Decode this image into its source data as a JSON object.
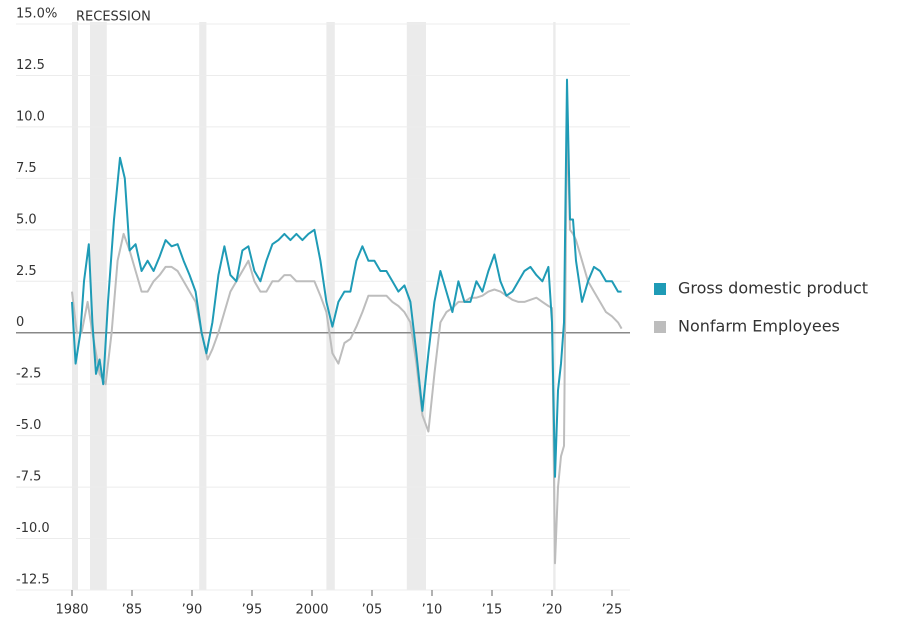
{
  "chart_data": {
    "type": "line",
    "annotation": "RECESSION",
    "recessions": [
      [
        1980.0,
        1980.5
      ],
      [
        1981.5,
        1982.9
      ],
      [
        1990.6,
        1991.2
      ],
      [
        2001.2,
        2001.9
      ],
      [
        2007.9,
        2009.5
      ],
      [
        2020.1,
        2020.3
      ]
    ],
    "recession_color": "#ebebeb",
    "xlim": [
      1980,
      2026.5
    ],
    "ylim": [
      -12.5,
      15
    ],
    "xticks": [
      1980,
      {
        "value": 1985,
        "label": "’85"
      },
      {
        "value": 1990,
        "label": "’90"
      },
      {
        "value": 1995,
        "label": "’95"
      },
      2000,
      {
        "value": 2005,
        "label": "’05"
      },
      {
        "value": 2010,
        "label": "’10"
      },
      {
        "value": 2015,
        "label": "’15"
      },
      {
        "value": 2020,
        "label": "’20"
      },
      {
        "value": 2025,
        "label": "’25"
      }
    ],
    "yticks": [
      {
        "value": 15,
        "label": "15.0%"
      },
      12.5,
      {
        "value": 10,
        "label": "10.0"
      },
      7.5,
      {
        "value": 5,
        "label": "5.0"
      },
      2.5,
      0,
      -2.5,
      {
        "value": -5,
        "label": "-5.0"
      },
      -7.5,
      {
        "value": -10,
        "label": "-10.0"
      },
      -12.5
    ],
    "grid": true,
    "legend": "right",
    "series": [
      {
        "name": "Gross domestic product",
        "color": "#1f9bb6",
        "x": [
          1980.0,
          1980.3,
          1980.7,
          1981.0,
          1981.4,
          1981.7,
          1982.0,
          1982.3,
          1982.6,
          1983.0,
          1983.5,
          1984.0,
          1984.4,
          1984.8,
          1985.3,
          1985.8,
          1986.3,
          1986.8,
          1987.3,
          1987.8,
          1988.3,
          1988.8,
          1989.3,
          1989.8,
          1990.3,
          1990.8,
          1991.2,
          1991.7,
          1992.2,
          1992.7,
          1993.2,
          1993.7,
          1994.2,
          1994.7,
          1995.2,
          1995.7,
          1996.2,
          1996.7,
          1997.2,
          1997.7,
          1998.2,
          1998.7,
          1999.2,
          1999.7,
          2000.2,
          2000.7,
          2001.2,
          2001.7,
          2002.2,
          2002.7,
          2003.2,
          2003.7,
          2004.2,
          2004.7,
          2005.2,
          2005.7,
          2006.2,
          2006.7,
          2007.2,
          2007.7,
          2008.2,
          2008.7,
          2009.2,
          2009.7,
          2010.2,
          2010.7,
          2011.2,
          2011.7,
          2012.2,
          2012.7,
          2013.2,
          2013.7,
          2014.2,
          2014.7,
          2015.2,
          2015.7,
          2016.2,
          2016.7,
          2017.2,
          2017.7,
          2018.2,
          2018.7,
          2019.2,
          2019.7,
          2020.0,
          2020.25,
          2020.5,
          2020.75,
          2021.0,
          2021.25,
          2021.5,
          2021.75,
          2022.0,
          2022.5,
          2023.0,
          2023.5,
          2024.0,
          2024.5,
          2025.0,
          2025.5,
          2025.8
        ],
        "values": [
          1.5,
          -1.5,
          0,
          2.5,
          4.3,
          0.5,
          -2.0,
          -1.3,
          -2.5,
          1.5,
          5.5,
          8.5,
          7.5,
          4.0,
          4.3,
          3.0,
          3.5,
          3.0,
          3.7,
          4.5,
          4.2,
          4.3,
          3.5,
          2.8,
          2.0,
          0,
          -1.0,
          0.5,
          2.8,
          4.2,
          2.8,
          2.5,
          4.0,
          4.2,
          3.0,
          2.5,
          3.5,
          4.3,
          4.5,
          4.8,
          4.5,
          4.8,
          4.5,
          4.8,
          5.0,
          3.5,
          1.5,
          0.3,
          1.5,
          2.0,
          2.0,
          3.5,
          4.2,
          3.5,
          3.5,
          3.0,
          3.0,
          2.5,
          2.0,
          2.3,
          1.5,
          -1.0,
          -3.8,
          -1.0,
          1.5,
          3.0,
          2.0,
          1.0,
          2.5,
          1.5,
          1.5,
          2.5,
          2.0,
          3.0,
          3.8,
          2.5,
          1.8,
          2.0,
          2.5,
          3.0,
          3.2,
          2.8,
          2.5,
          3.2,
          0.5,
          -7.0,
          -2.8,
          -1.5,
          0.5,
          12.3,
          5.5,
          5.5,
          3.5,
          1.5,
          2.5,
          3.2,
          3.0,
          2.5,
          2.5,
          2.0,
          2.0
        ]
      },
      {
        "name": "Nonfarm Employees",
        "color": "#bdbdbd",
        "x": [
          1980.0,
          1980.4,
          1980.8,
          1981.3,
          1981.7,
          1982.3,
          1982.8,
          1983.3,
          1983.8,
          1984.3,
          1984.8,
          1985.3,
          1985.8,
          1986.3,
          1986.8,
          1987.3,
          1987.8,
          1988.3,
          1988.8,
          1989.3,
          1989.8,
          1990.3,
          1990.8,
          1991.3,
          1991.7,
          1992.2,
          1992.7,
          1993.2,
          1993.7,
          1994.2,
          1994.7,
          1995.2,
          1995.7,
          1996.2,
          1996.7,
          1997.2,
          1997.7,
          1998.2,
          1998.7,
          1999.2,
          1999.7,
          2000.2,
          2000.7,
          2001.2,
          2001.7,
          2002.2,
          2002.7,
          2003.2,
          2003.7,
          2004.2,
          2004.7,
          2005.2,
          2005.7,
          2006.2,
          2006.7,
          2007.2,
          2007.7,
          2008.2,
          2008.7,
          2009.2,
          2009.7,
          2010.2,
          2010.7,
          2011.2,
          2011.7,
          2012.2,
          2012.7,
          2013.2,
          2013.7,
          2014.2,
          2014.7,
          2015.2,
          2015.7,
          2016.2,
          2016.7,
          2017.2,
          2017.7,
          2018.2,
          2018.7,
          2019.2,
          2019.7,
          2020.0,
          2020.25,
          2020.5,
          2020.75,
          2021.0,
          2021.25,
          2021.5,
          2021.75,
          2022.0,
          2022.5,
          2023.0,
          2023.5,
          2024.0,
          2024.5,
          2025.0,
          2025.5,
          2025.8
        ],
        "values": [
          2.0,
          0,
          0,
          1.5,
          0,
          -2.0,
          -2.5,
          0,
          3.5,
          4.8,
          4.0,
          3.0,
          2.0,
          2.0,
          2.5,
          2.8,
          3.2,
          3.2,
          3.0,
          2.5,
          2.0,
          1.5,
          0,
          -1.3,
          -0.8,
          0,
          1.0,
          2.0,
          2.5,
          3.0,
          3.5,
          2.5,
          2.0,
          2.0,
          2.5,
          2.5,
          2.8,
          2.8,
          2.5,
          2.5,
          2.5,
          2.5,
          1.8,
          1.0,
          -1.0,
          -1.5,
          -0.5,
          -0.3,
          0.3,
          1.0,
          1.8,
          1.8,
          1.8,
          1.8,
          1.5,
          1.3,
          1.0,
          0.5,
          -1.5,
          -4.0,
          -4.8,
          -2.0,
          0.5,
          1.0,
          1.2,
          1.5,
          1.5,
          1.7,
          1.7,
          1.8,
          2.0,
          2.1,
          2.0,
          1.8,
          1.6,
          1.5,
          1.5,
          1.6,
          1.7,
          1.5,
          1.3,
          1.2,
          -11.2,
          -7.5,
          -6.0,
          -5.5,
          10.5,
          5.0,
          4.8,
          4.5,
          3.5,
          2.5,
          2.0,
          1.5,
          1.0,
          0.8,
          0.5,
          0.2
        ]
      }
    ]
  }
}
